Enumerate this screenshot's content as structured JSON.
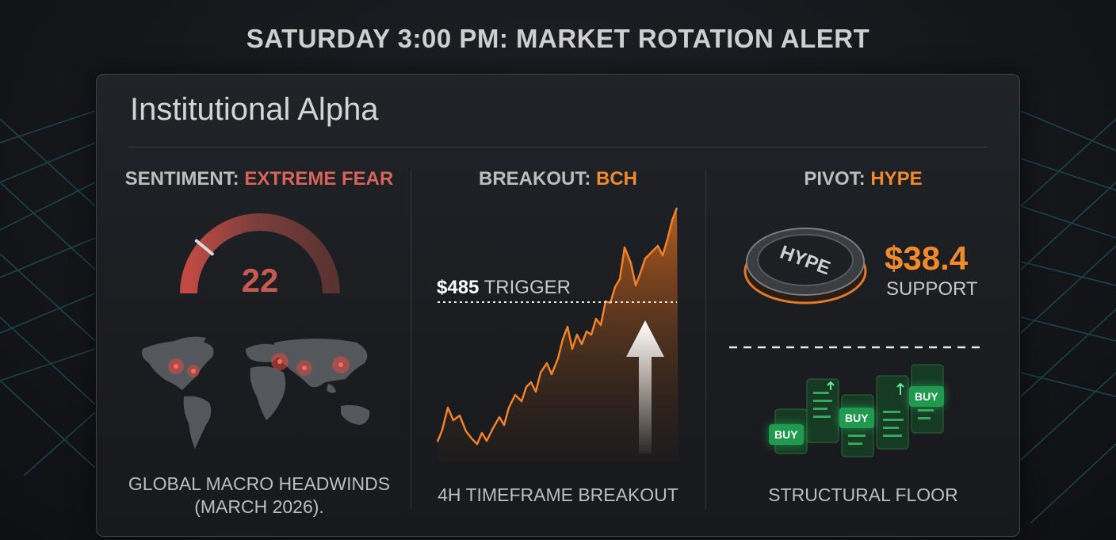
{
  "header": {
    "title": "SATURDAY 3:00 PM: MARKET ROTATION ALERT"
  },
  "panel": {
    "title": "Institutional Alpha"
  },
  "sentiment": {
    "label": "SENTIMENT: ",
    "value": "EXTREME FEAR",
    "gauge_value": "22",
    "gauge_fraction": 0.22,
    "caption_line1": "GLOBAL MACRO HEADWINDS",
    "caption_line2": "(MARCH 2026).",
    "map_icon": "world-map-icon"
  },
  "breakout": {
    "label": "BREAKOUT: ",
    "ticker": "BCH",
    "trigger_price": "$485",
    "trigger_text": " TRIGGER",
    "caption": "4H TIMEFRAME BREAKOUT",
    "arrow_icon": "up-arrow-icon"
  },
  "pivot": {
    "label": "PIVOT: ",
    "ticker": "HYPE",
    "coin_text": "HYPE",
    "price": "$38.4",
    "price_sub": "SUPPORT",
    "buy_labels": [
      "BUY",
      "BUY",
      "BUY"
    ],
    "caption": "STRUCTURAL FLOOR"
  },
  "colors": {
    "accent_orange": "#ef8a2e",
    "accent_red": "#d6645a",
    "buy_green": "#1f9a4f",
    "grid_cyan": "#1e6b78"
  }
}
